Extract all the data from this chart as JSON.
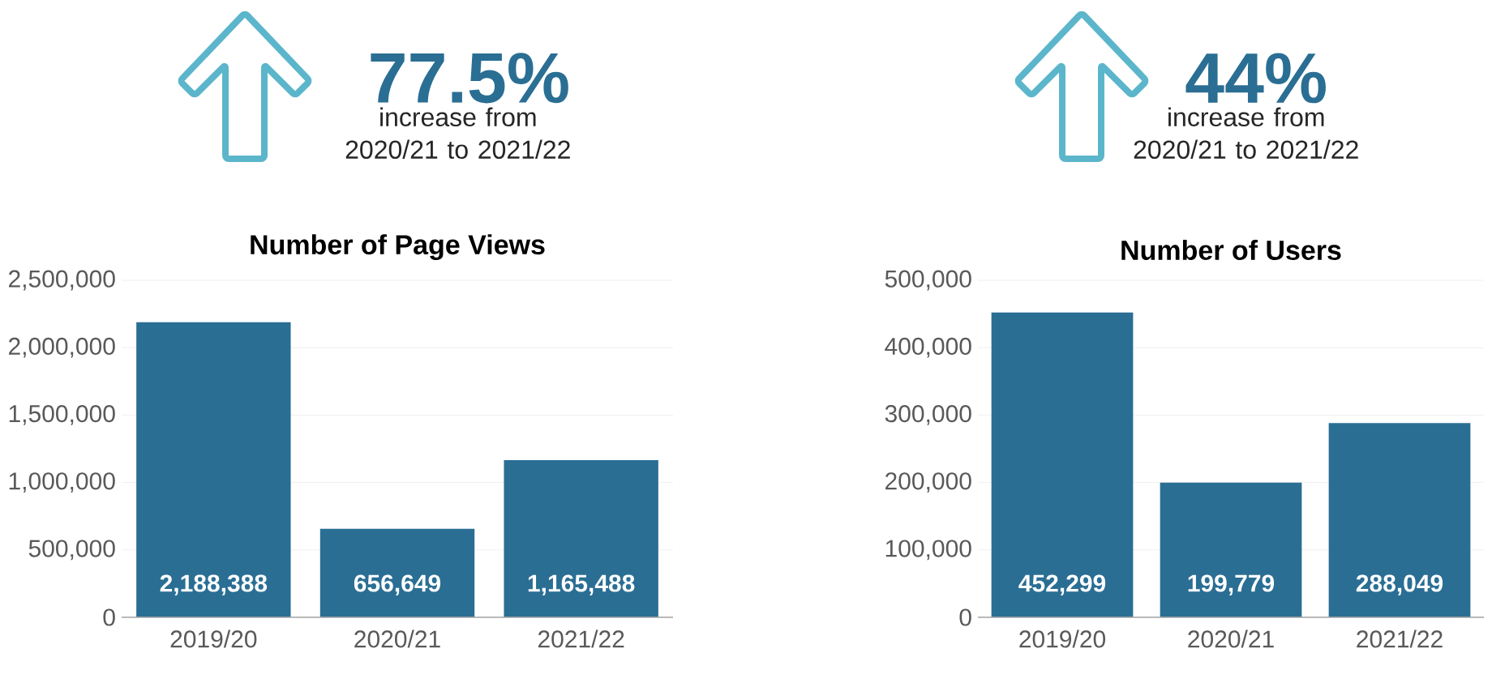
{
  "chart_data": [
    {
      "type": "bar",
      "title": "Number of Page Views",
      "annotations": [
        "77.5%",
        "increase from 2020/21 to 2021/22"
      ],
      "categories": [
        "2019/20",
        "2020/21",
        "2021/22"
      ],
      "values": [
        2188388,
        656649,
        1165488
      ],
      "value_labels": [
        "2,188,388",
        "656,649",
        "1,165,488"
      ],
      "color": "#2a6e94",
      "ylim": [
        0,
        2500000
      ],
      "yticks": [
        0,
        {
          "value": 500000,
          "label": "500,000"
        },
        {
          "value": 1000000,
          "label": "1,000,000"
        },
        {
          "value": 1500000,
          "label": "1,500,000"
        },
        {
          "value": 2000000,
          "label": "2,000,000"
        },
        {
          "value": 2500000,
          "label": "2,500,000"
        }
      ],
      "grid": "y"
    },
    {
      "type": "bar",
      "title": "Number of Users",
      "annotations": [
        "44%",
        "increase from 2020/21 to 2021/22"
      ],
      "categories": [
        "2019/20",
        "2020/21",
        "2021/22"
      ],
      "values": [
        452299,
        199779,
        288049
      ],
      "value_labels": [
        "452,299",
        "199,779",
        "288,049"
      ],
      "color": "#2a6e94",
      "ylim": [
        0,
        500000
      ],
      "yticks": [
        0,
        {
          "value": 100000,
          "label": "100,000"
        },
        {
          "value": 200000,
          "label": "200,000"
        },
        {
          "value": 300000,
          "label": "300,000"
        },
        {
          "value": 400000,
          "label": "400,000"
        },
        {
          "value": 500000,
          "label": "500,000"
        }
      ],
      "grid": "y"
    }
  ]
}
